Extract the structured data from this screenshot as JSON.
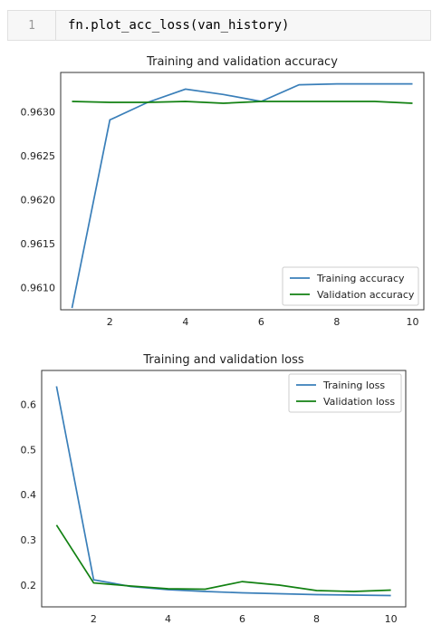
{
  "cell": {
    "line_number": "1",
    "code": "fn.plot_acc_loss(van_history)"
  },
  "colors": {
    "training": "#3a7fb9",
    "validation": "#128112",
    "axes": "#333333"
  },
  "chart_data": [
    {
      "type": "line",
      "title": "Training and validation accuracy",
      "xlabel": "",
      "ylabel": "",
      "x": [
        1,
        2,
        3,
        4,
        5,
        6,
        7,
        8,
        9,
        10
      ],
      "xlim": [
        0.7,
        10.3
      ],
      "ylim": [
        0.96075,
        0.96345
      ],
      "xticks": [
        2,
        4,
        6,
        8,
        10
      ],
      "yticks": [
        0.961,
        0.9615,
        0.962,
        0.9625,
        0.963
      ],
      "ytick_labels": [
        "0.9610",
        "0.9615",
        "0.9620",
        "0.9625",
        "0.9630"
      ],
      "grid": false,
      "legend_position": "lower-right",
      "series": [
        {
          "name": "Training accuracy",
          "values": [
            0.96077,
            0.96291,
            0.96311,
            0.96326,
            0.9632,
            0.96312,
            0.96331,
            0.96332,
            0.96332,
            0.96332
          ]
        },
        {
          "name": "Validation accuracy",
          "values": [
            0.96312,
            0.96311,
            0.96311,
            0.96312,
            0.9631,
            0.96312,
            0.96312,
            0.96312,
            0.96312,
            0.9631
          ]
        }
      ]
    },
    {
      "type": "line",
      "title": "Training and validation loss",
      "xlabel": "",
      "ylabel": "",
      "x": [
        1,
        2,
        3,
        4,
        5,
        6,
        7,
        8,
        9,
        10
      ],
      "xlim": [
        0.6,
        10.4
      ],
      "ylim": [
        0.152,
        0.675
      ],
      "xticks": [
        2,
        4,
        6,
        8,
        10
      ],
      "yticks": [
        0.2,
        0.3,
        0.4,
        0.5,
        0.6
      ],
      "ytick_labels": [
        "0.2",
        "0.3",
        "0.4",
        "0.5",
        "0.6"
      ],
      "grid": false,
      "legend_position": "upper-right",
      "series": [
        {
          "name": "Training loss",
          "values": [
            0.64,
            0.212,
            0.197,
            0.19,
            0.186,
            0.183,
            0.181,
            0.179,
            0.178,
            0.177
          ]
        },
        {
          "name": "Validation loss",
          "values": [
            0.333,
            0.205,
            0.198,
            0.192,
            0.191,
            0.208,
            0.2,
            0.188,
            0.186,
            0.189
          ]
        }
      ]
    }
  ]
}
